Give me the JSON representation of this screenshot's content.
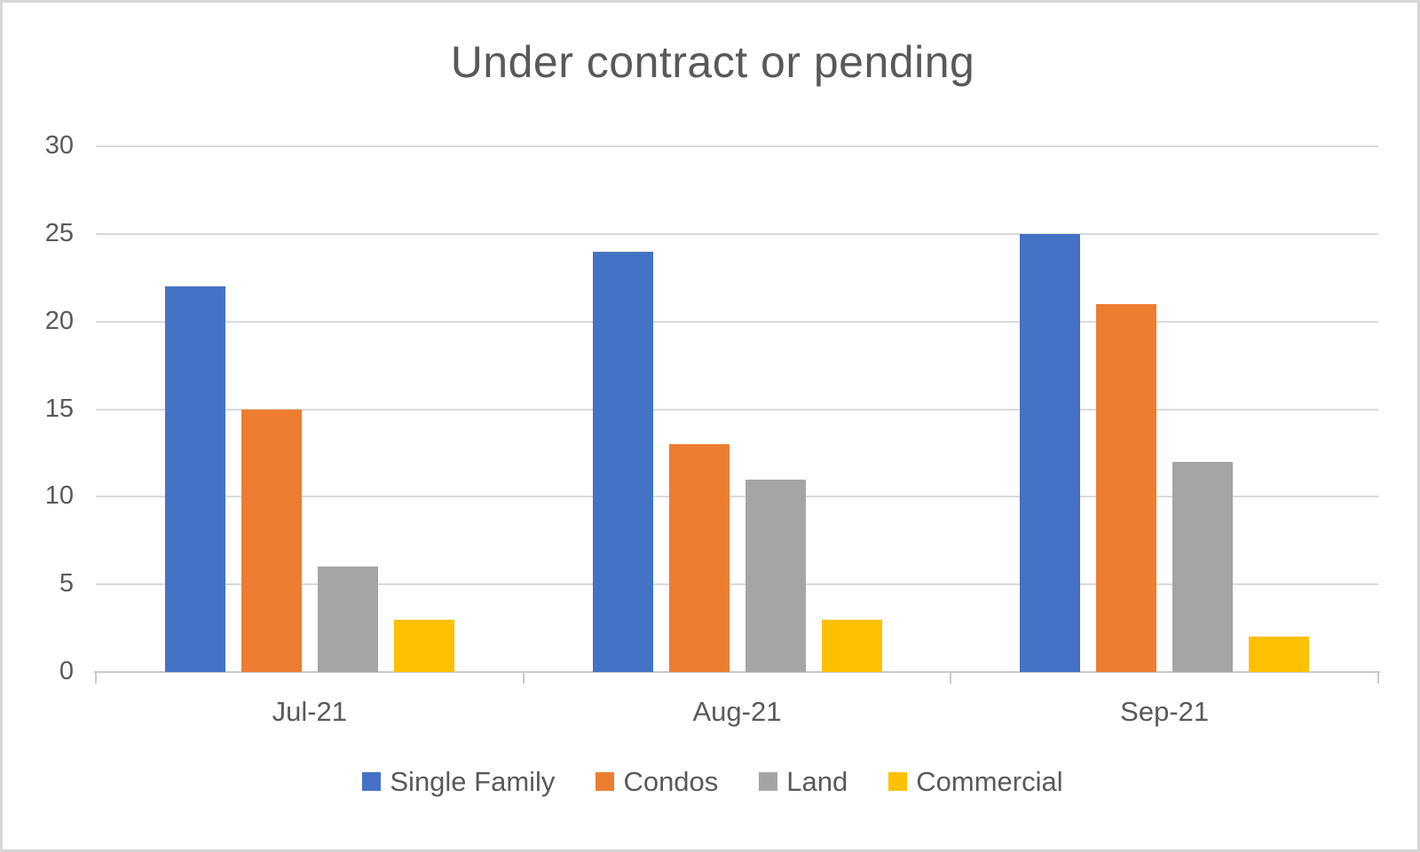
{
  "chart_data": {
    "type": "bar",
    "title": "Under contract or pending",
    "categories": [
      "Jul-21",
      "Aug-21",
      "Sep-21"
    ],
    "series": [
      {
        "name": "Single Family",
        "color": "#4472C4",
        "values": [
          22,
          24,
          25
        ]
      },
      {
        "name": "Condos",
        "color": "#ED7D31",
        "values": [
          15,
          13,
          21
        ]
      },
      {
        "name": "Land",
        "color": "#A5A5A5",
        "values": [
          6,
          11,
          12
        ]
      },
      {
        "name": "Commercial",
        "color": "#FFC000",
        "values": [
          3,
          3,
          2
        ]
      }
    ],
    "yticks": [
      0,
      5,
      10,
      15,
      20,
      25,
      30
    ],
    "ylim": [
      0,
      30
    ],
    "xlabel": "",
    "ylabel": "",
    "grid": "horizontal-on",
    "legend_position": "bottom"
  },
  "colors": {
    "text": "#595959",
    "gridline": "#D9D9D9",
    "axis_line": "#C9C9C9",
    "frame_border": "#D6D6D6",
    "background": "#FFFFFF"
  }
}
